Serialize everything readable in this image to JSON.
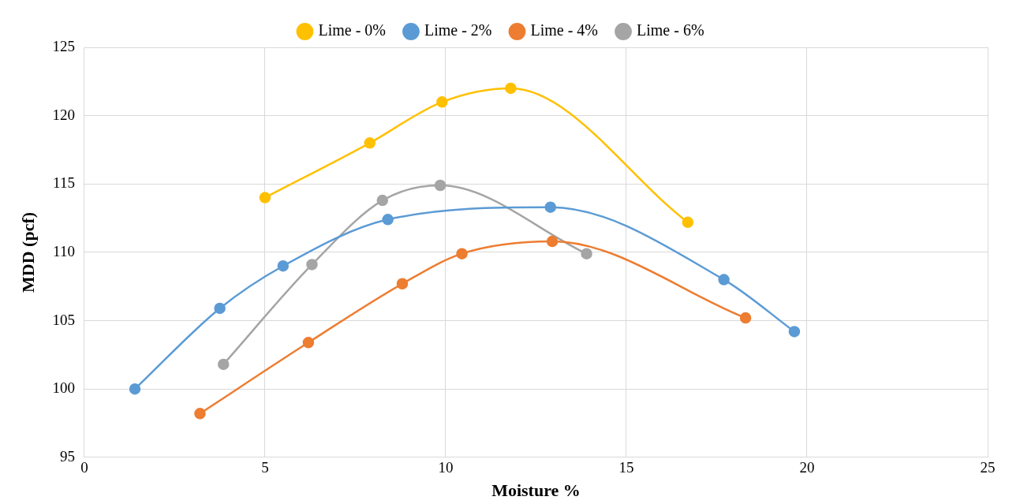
{
  "chart_data": {
    "type": "line",
    "xlabel": "Moisture %",
    "ylabel": "MDD (pcf)",
    "xlim": [
      0,
      25
    ],
    "xticks": [
      0,
      5,
      10,
      15,
      20,
      25
    ],
    "ylim": [
      95,
      125
    ],
    "yticks": [
      95,
      100,
      105,
      110,
      115,
      120,
      125
    ],
    "grid": true,
    "legend": "top",
    "marker": "circle",
    "line_style": "solid",
    "series": [
      {
        "name": "Lime - 0%",
        "color": "#ffc000",
        "x": [
          5.0,
          7.9,
          9.9,
          11.8,
          16.7
        ],
        "values": [
          114.0,
          118.0,
          121.0,
          122.0,
          112.2
        ]
      },
      {
        "name": "Lime - 2%",
        "color": "#5b9bd5",
        "x": [
          1.4,
          3.75,
          5.5,
          8.4,
          12.9,
          17.7,
          19.65
        ],
        "values": [
          100.0,
          105.9,
          109.0,
          112.4,
          113.3,
          108.0,
          104.2
        ]
      },
      {
        "name": "Lime - 4%",
        "color": "#ed7d31",
        "x": [
          3.2,
          6.2,
          8.8,
          10.45,
          12.95,
          18.3
        ],
        "values": [
          98.2,
          103.4,
          107.7,
          109.9,
          110.8,
          105.2
        ]
      },
      {
        "name": "Lime - 6%",
        "color": "#a5a5a5",
        "x": [
          3.85,
          6.3,
          8.25,
          9.85,
          13.9
        ],
        "values": [
          101.8,
          109.1,
          113.8,
          114.9,
          109.9
        ]
      }
    ]
  }
}
